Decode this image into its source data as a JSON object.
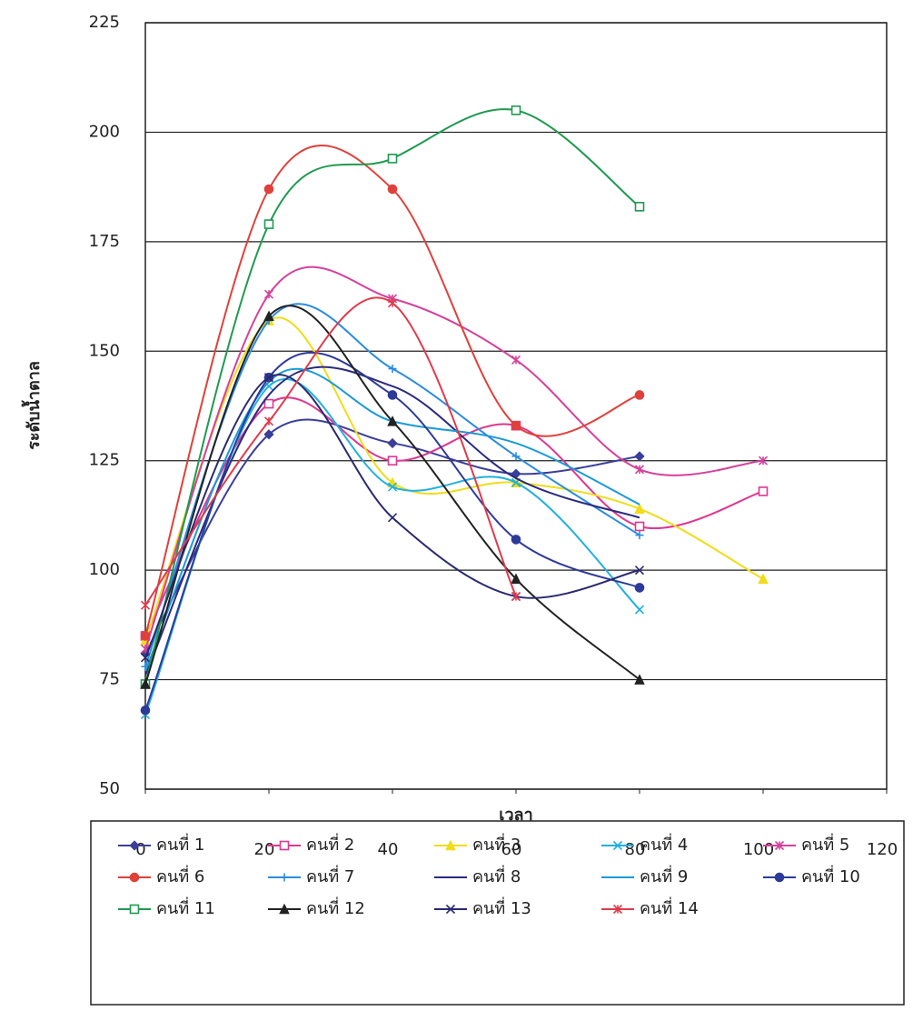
{
  "chart_data": {
    "type": "line",
    "x_label": "เวลา",
    "y_label": "ระดับน้ำตาล",
    "x": [
      0,
      20,
      40,
      60,
      80,
      100
    ],
    "xlim": [
      0,
      120
    ],
    "xticks": [
      0,
      20,
      40,
      60,
      80,
      100,
      120
    ],
    "ylim": [
      50,
      225
    ],
    "yticks": [
      50,
      75,
      100,
      125,
      150,
      175,
      200,
      225
    ],
    "grid": true,
    "smooth": true,
    "legend": "bottom",
    "series": [
      {
        "name": "คนที่ 1",
        "color": "#3a3f9a",
        "marker": "diamond",
        "values": [
          81,
          131,
          129,
          122,
          126,
          null
        ]
      },
      {
        "name": "คนที่ 2",
        "color": "#e0368f",
        "marker": "square",
        "values": [
          85,
          138,
          125,
          133,
          110,
          118
        ]
      },
      {
        "name": "คนที่ 3",
        "color": "#f0dc18",
        "marker": "triangle",
        "values": [
          84,
          157,
          120,
          120,
          114,
          98
        ]
      },
      {
        "name": "คนที่ 4",
        "color": "#22b0e0",
        "marker": "x",
        "values": [
          67,
          142,
          119,
          120,
          91,
          null
        ]
      },
      {
        "name": "คนที่ 5",
        "color": "#d6409a",
        "marker": "star",
        "values": [
          82,
          163,
          162,
          148,
          123,
          125
        ]
      },
      {
        "name": "คนที่ 6",
        "color": "#e0403a",
        "marker": "circle",
        "values": [
          85,
          187,
          187,
          133,
          140,
          null
        ]
      },
      {
        "name": "คนที่ 7",
        "color": "#2a8ce0",
        "marker": "plus",
        "values": [
          78,
          157,
          146,
          126,
          108,
          null
        ]
      },
      {
        "name": "คนที่ 8",
        "color": "#2a2a80",
        "marker": "none",
        "values": [
          76,
          140,
          142,
          121,
          112,
          null
        ]
      },
      {
        "name": "คนที่ 9",
        "color": "#1a9ad8",
        "marker": "none",
        "values": [
          77,
          143,
          134,
          129,
          115,
          null
        ]
      },
      {
        "name": "คนที่ 10",
        "color": "#2d3a9a",
        "marker": "circle",
        "values": [
          68,
          144,
          140,
          107,
          96,
          null
        ]
      },
      {
        "name": "คนที่ 11",
        "color": "#1f9a50",
        "marker": "square",
        "values": [
          74,
          179,
          194,
          205,
          183,
          null
        ]
      },
      {
        "name": "คนที่ 12",
        "color": "#222222",
        "marker": "triangle",
        "values": [
          74,
          158,
          134,
          98,
          75,
          null
        ]
      },
      {
        "name": "คนที่ 13",
        "color": "#2a2a70",
        "marker": "x",
        "values": [
          80,
          144,
          112,
          94,
          100,
          null
        ]
      },
      {
        "name": "คนที่ 14",
        "color": "#e03a4a",
        "marker": "star",
        "values": [
          92,
          134,
          161,
          94,
          null,
          null
        ]
      }
    ]
  }
}
